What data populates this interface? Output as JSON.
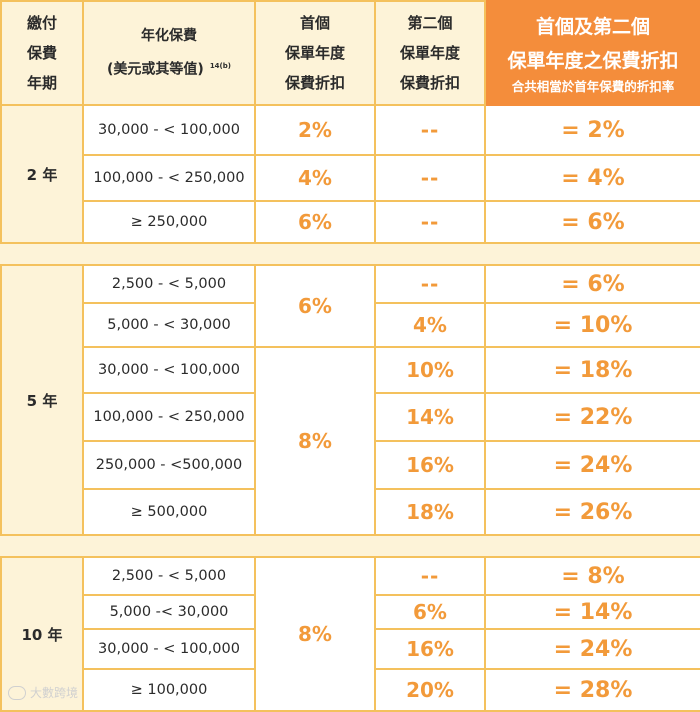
{
  "header": {
    "col1": [
      "繳付",
      "保費",
      "年期"
    ],
    "col2": [
      "年化保費",
      "(美元或其等值)"
    ],
    "col2_note": "14(b)",
    "col3": [
      "首個",
      "保單年度",
      "保費折扣"
    ],
    "col4": [
      "第二個",
      "保單年度",
      "保費折扣"
    ],
    "col5_line1": "首個及第二個",
    "col5_line2": "保單年度之保費折扣",
    "col5_line3": "合共相當於首年保費的折扣率"
  },
  "groups": [
    {
      "term": "2 年",
      "ranges": [
        "30,000 - < 100,000",
        "100,000 - < 250,000",
        "≥ 250,000"
      ],
      "first": [
        "2%",
        "4%",
        "6%"
      ],
      "second": [
        "--",
        "--",
        "--"
      ],
      "total": [
        "= 2%",
        "= 4%",
        "= 6%"
      ]
    },
    {
      "term": "5 年",
      "ranges": [
        "2,500 - < 5,000",
        "5,000 - < 30,000",
        "30,000 - < 100,000",
        "100,000 - < 250,000",
        "250,000 - <500,000",
        "≥ 500,000"
      ],
      "first_merged": [
        "6%",
        "8%"
      ],
      "second": [
        "--",
        "4%",
        "10%",
        "14%",
        "16%",
        "18%"
      ],
      "total": [
        "= 6%",
        "= 10%",
        "= 18%",
        "= 22%",
        "= 24%",
        "= 26%"
      ]
    },
    {
      "term": "10 年",
      "ranges": [
        "2,500 - < 5,000",
        "5,000 -< 30,000",
        "30,000 - < 100,000",
        "≥ 100,000"
      ],
      "first_merged": "8%",
      "second": [
        "--",
        "6%",
        "16%",
        "20%"
      ],
      "total": [
        "= 8%",
        "= 14%",
        "= 24%",
        "= 28%"
      ]
    }
  ],
  "watermark": "大數跨境",
  "colors": {
    "accent": "#f48d3b",
    "value": "#f29a3a",
    "header_bg": "#fdf3d8",
    "border": "#f4c15d"
  }
}
